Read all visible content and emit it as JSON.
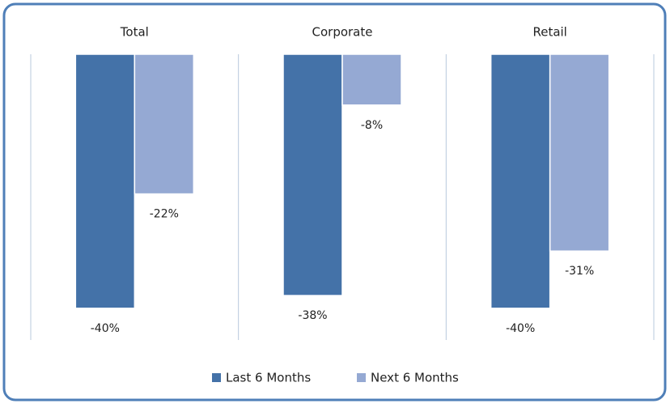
{
  "chart_data": {
    "type": "bar",
    "categories": [
      "Total",
      "Corporate",
      "Retail"
    ],
    "series": [
      {
        "name": "Last 6 Months",
        "color": "#4472a8",
        "values": [
          -40,
          -38,
          -40
        ],
        "value_labels": [
          "-40%",
          "-38%",
          "-40%"
        ]
      },
      {
        "name": "Next 6 Months",
        "color": "#95a9d3",
        "values": [
          -22,
          -8,
          -31
        ],
        "value_labels": [
          "-22%",
          "-8%",
          "-31%"
        ]
      }
    ],
    "ylim": [
      -45,
      0
    ],
    "legend": "bottom"
  }
}
